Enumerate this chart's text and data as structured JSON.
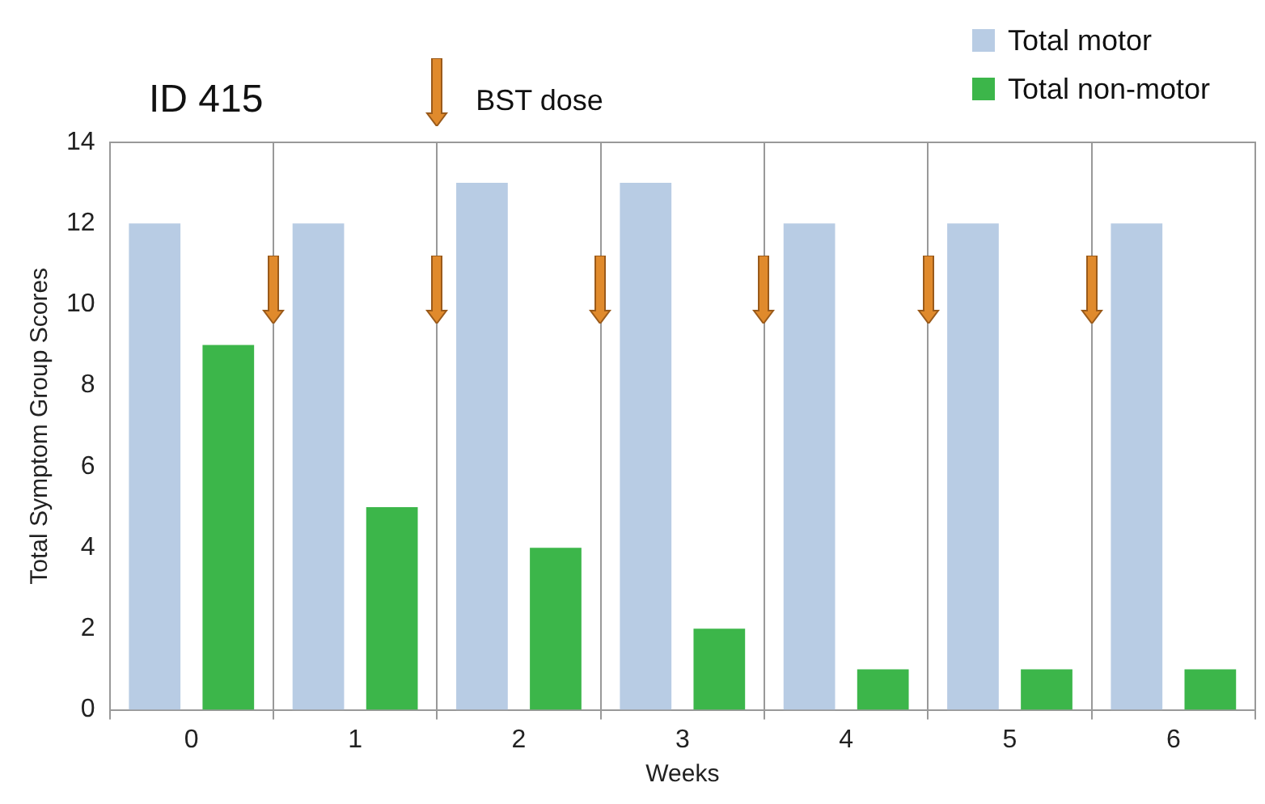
{
  "chart_data": {
    "type": "bar",
    "xlabel": "Weeks",
    "ylabel": "Total Symptom Group Scores",
    "categories": [
      "0",
      "1",
      "2",
      "3",
      "4",
      "5",
      "6"
    ],
    "series": [
      {
        "name": "Total motor",
        "color": "#b8cce4",
        "values": [
          12,
          12,
          13,
          13,
          12,
          12,
          12
        ]
      },
      {
        "name": "Total non-motor",
        "color": "#3cb64a",
        "values": [
          9,
          5,
          4,
          2,
          1,
          1,
          1
        ]
      }
    ],
    "ylim": [
      0,
      14
    ],
    "yticks": [
      0,
      2,
      4,
      6,
      8,
      10,
      12,
      14
    ],
    "grid": "x",
    "legend": "top right",
    "annotations": [
      "ID 415",
      "BST dose"
    ]
  }
}
